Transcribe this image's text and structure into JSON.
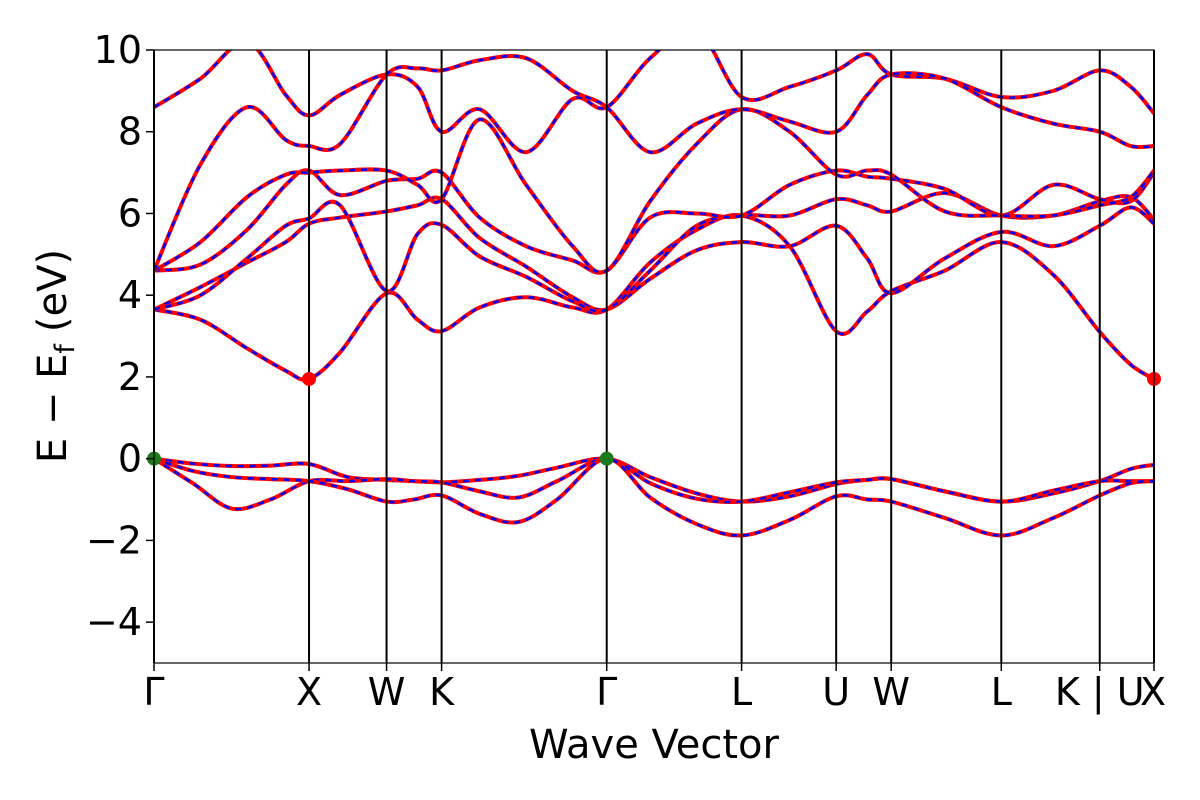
{
  "chart_data": {
    "type": "line",
    "title": "",
    "xlabel": "Wave Vector",
    "ylabel": "E − E",
    "ylabel_sub": "f",
    "ylabel_unit": "(eV)",
    "ylim": [
      -5,
      10
    ],
    "xlim": [
      0,
      6.45
    ],
    "yticks": [
      -4,
      -2,
      0,
      2,
      4,
      6,
      8,
      10
    ],
    "ytick_labels": [
      "−4",
      "−2",
      "0",
      "2",
      "4",
      "6",
      "8",
      "10"
    ],
    "kpoints": [
      {
        "label": "Γ",
        "x": 0.0
      },
      {
        "label": "X",
        "x": 1.0
      },
      {
        "label": "W",
        "x": 1.5
      },
      {
        "label": "K",
        "x": 1.855
      },
      {
        "label": "Γ",
        "x": 2.92
      },
      {
        "label": "L",
        "x": 3.79
      },
      {
        "label": "U",
        "x": 4.4
      },
      {
        "label": "W",
        "x": 4.755
      },
      {
        "label": "L",
        "x": 5.465
      },
      {
        "label": "K | U",
        "x": 6.1
      },
      {
        "label": "X",
        "x": 6.45
      }
    ],
    "grid": false,
    "legend": "none",
    "series_colors": {
      "red": "#ff0000",
      "blue": "#0000ff",
      "vbm": "#1a7a1a",
      "cbm": "#ff0000"
    },
    "band_edges": [
      {
        "kind": "VBM",
        "x": 0.0,
        "y": 0.0,
        "color": "#1a7a1a"
      },
      {
        "kind": "VBM",
        "x": 2.92,
        "y": 0.0,
        "color": "#1a7a1a"
      },
      {
        "kind": "CBM",
        "x": 1.0,
        "y": 1.95,
        "color": "#ff0000"
      },
      {
        "kind": "CBM",
        "x": 6.45,
        "y": 1.95,
        "color": "#ff0000"
      }
    ],
    "series": [
      {
        "x": [
          0,
          0.25,
          0.5,
          0.75,
          1.0,
          1.25,
          1.5,
          1.675,
          1.855,
          2.1,
          2.35,
          2.6,
          2.92,
          3.2,
          3.5,
          3.79,
          4.1,
          4.4,
          4.6,
          4.755,
          5.1,
          5.465,
          5.8,
          6.1,
          6.3,
          6.45
        ],
        "values": [
          0.0,
          -0.12,
          -0.18,
          -0.17,
          -0.13,
          -0.45,
          -0.52,
          -0.55,
          -0.58,
          -0.52,
          -0.42,
          -0.22,
          0.0,
          -0.45,
          -0.85,
          -1.05,
          -0.92,
          -0.62,
          -0.52,
          -0.5,
          -0.8,
          -1.05,
          -0.85,
          -0.55,
          -0.25,
          -0.15
        ]
      },
      {
        "x": [
          0,
          0.25,
          0.5,
          0.75,
          1.0,
          1.25,
          1.5,
          1.675,
          1.855,
          2.1,
          2.35,
          2.6,
          2.92,
          3.2,
          3.5,
          3.79,
          4.1,
          4.4,
          4.6,
          4.755,
          5.1,
          5.465,
          5.8,
          6.1,
          6.3,
          6.45
        ],
        "values": [
          0.0,
          -0.6,
          -1.22,
          -1.0,
          -0.55,
          -0.55,
          -0.5,
          -0.55,
          -0.58,
          -0.8,
          -0.95,
          -0.55,
          0.0,
          -0.6,
          -0.98,
          -1.05,
          -0.82,
          -0.58,
          -0.52,
          -0.5,
          -0.8,
          -1.05,
          -0.78,
          -0.55,
          -0.55,
          -0.55
        ]
      },
      {
        "x": [
          0,
          0.25,
          0.5,
          0.75,
          1.0,
          1.25,
          1.5,
          1.675,
          1.855,
          2.1,
          2.35,
          2.6,
          2.92,
          3.2,
          3.5,
          3.79,
          4.1,
          4.4,
          4.6,
          4.755,
          5.1,
          5.465,
          5.8,
          6.1,
          6.3,
          6.45
        ],
        "values": [
          0.0,
          -0.3,
          -0.45,
          -0.5,
          -0.55,
          -0.75,
          -1.05,
          -1.0,
          -0.9,
          -1.35,
          -1.55,
          -1.0,
          0.0,
          -0.95,
          -1.6,
          -1.88,
          -1.5,
          -0.92,
          -1.0,
          -1.05,
          -1.45,
          -1.88,
          -1.45,
          -0.9,
          -0.6,
          -0.55
        ]
      },
      {
        "x": [
          0,
          0.3,
          0.6,
          0.85,
          1.0,
          1.2,
          1.5,
          1.7,
          1.855,
          2.1,
          2.4,
          2.7,
          2.92,
          3.2,
          3.5,
          3.79,
          4.1,
          4.4,
          4.6,
          4.755,
          5.1,
          5.465,
          5.8,
          6.1,
          6.3,
          6.45
        ],
        "values": [
          3.65,
          3.4,
          2.7,
          2.15,
          1.95,
          2.6,
          4.05,
          3.4,
          3.12,
          3.7,
          3.95,
          3.7,
          3.65,
          4.8,
          5.6,
          5.95,
          5.2,
          3.12,
          3.6,
          4.1,
          4.6,
          5.3,
          4.5,
          3.1,
          2.3,
          1.95
        ]
      },
      {
        "x": [
          0,
          0.3,
          0.6,
          0.85,
          1.0,
          1.2,
          1.5,
          1.7,
          1.855,
          2.1,
          2.4,
          2.7,
          2.92,
          3.2,
          3.5,
          3.79,
          4.1,
          4.4,
          4.6,
          4.755,
          5.1,
          5.465,
          5.8,
          6.1,
          6.3,
          6.45
        ],
        "values": [
          3.65,
          4.2,
          4.8,
          5.3,
          5.75,
          5.9,
          6.05,
          6.2,
          6.35,
          5.4,
          4.7,
          3.95,
          3.65,
          4.4,
          5.1,
          5.3,
          5.2,
          5.7,
          4.9,
          4.05,
          4.9,
          5.55,
          5.2,
          5.7,
          6.15,
          5.75
        ]
      },
      {
        "x": [
          0,
          0.3,
          0.6,
          0.85,
          1.0,
          1.2,
          1.5,
          1.7,
          1.855,
          2.1,
          2.4,
          2.7,
          2.92,
          3.2,
          3.5,
          3.79,
          4.1,
          4.4,
          4.6,
          4.755,
          5.1,
          5.465,
          5.8,
          6.1,
          6.3,
          6.45
        ],
        "values": [
          3.65,
          4.0,
          4.9,
          5.7,
          5.88,
          6.2,
          4.1,
          5.5,
          5.72,
          4.95,
          4.45,
          3.85,
          3.65,
          4.6,
          5.7,
          5.95,
          5.95,
          6.35,
          6.2,
          6.05,
          6.5,
          5.95,
          5.95,
          6.3,
          6.4,
          5.85
        ]
      },
      {
        "x": [
          0,
          0.3,
          0.6,
          0.85,
          1.0,
          1.2,
          1.5,
          1.7,
          1.855,
          2.1,
          2.4,
          2.7,
          2.92,
          3.2,
          3.5,
          3.79,
          4.1,
          4.4,
          4.6,
          4.755,
          5.1,
          5.465,
          5.8,
          6.1,
          6.3,
          6.45
        ],
        "values": [
          4.6,
          4.75,
          5.6,
          6.7,
          7.05,
          6.45,
          6.8,
          6.85,
          7.0,
          5.9,
          5.2,
          4.85,
          4.6,
          5.9,
          6.0,
          5.95,
          6.7,
          7.05,
          6.9,
          6.85,
          6.6,
          5.95,
          6.7,
          6.35,
          6.3,
          7.0
        ]
      },
      {
        "x": [
          0,
          0.3,
          0.6,
          0.85,
          1.0,
          1.2,
          1.5,
          1.7,
          1.855,
          2.1,
          2.4,
          2.7,
          2.92,
          3.2,
          3.5,
          3.79,
          4.1,
          4.4,
          4.6,
          4.755,
          5.1,
          5.465,
          5.8,
          6.1,
          6.3,
          6.45
        ],
        "values": [
          4.6,
          5.3,
          6.4,
          6.95,
          7.0,
          7.05,
          7.05,
          6.7,
          6.35,
          8.3,
          6.7,
          5.2,
          4.6,
          6.3,
          7.7,
          8.55,
          8.0,
          6.95,
          7.05,
          6.95,
          6.05,
          5.95,
          5.95,
          6.2,
          6.4,
          7.05
        ]
      },
      {
        "x": [
          0,
          0.3,
          0.6,
          0.85,
          1.0,
          1.2,
          1.5,
          1.7,
          1.855,
          2.1,
          2.4,
          2.7,
          2.92,
          3.2,
          3.5,
          3.79,
          4.1,
          4.4,
          4.6,
          4.755,
          5.1,
          5.465,
          5.8,
          6.1,
          6.3,
          6.45
        ],
        "values": [
          8.6,
          9.3,
          10.2,
          8.9,
          8.4,
          8.9,
          9.4,
          9.1,
          8.0,
          8.55,
          7.5,
          8.8,
          8.6,
          9.8,
          10.5,
          8.85,
          9.1,
          9.5,
          9.9,
          9.4,
          9.3,
          8.85,
          9.0,
          9.5,
          9.1,
          8.45
        ]
      },
      {
        "x": [
          0,
          0.3,
          0.6,
          0.85,
          1.0,
          1.2,
          1.5,
          1.7,
          1.855,
          2.1,
          2.4,
          2.7,
          2.92,
          3.2,
          3.5,
          3.79,
          4.1,
          4.4,
          4.6,
          4.755,
          5.1,
          5.465,
          5.8,
          6.1,
          6.3,
          6.45
        ],
        "values": [
          4.6,
          7.2,
          8.6,
          7.8,
          7.65,
          7.7,
          9.4,
          9.55,
          9.5,
          9.75,
          9.8,
          9.0,
          8.6,
          7.5,
          8.2,
          8.55,
          8.25,
          8.0,
          8.9,
          9.4,
          9.3,
          8.6,
          8.2,
          8.0,
          7.65,
          7.65
        ]
      }
    ]
  }
}
